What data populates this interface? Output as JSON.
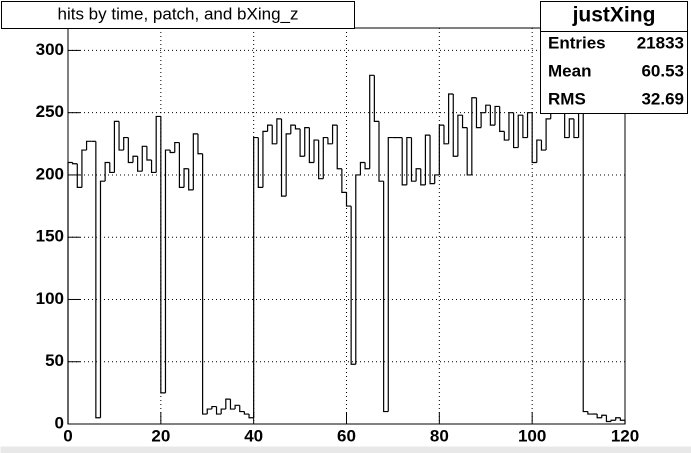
{
  "chart_data": {
    "type": "histogram",
    "title": "hits by time, patch, and bXing_z",
    "bins": [
      0,
      1,
      2,
      3,
      4,
      5,
      6,
      7,
      8,
      9,
      10,
      11,
      12,
      13,
      14,
      15,
      16,
      17,
      18,
      19,
      20,
      21,
      22,
      23,
      24,
      25,
      26,
      27,
      28,
      29,
      30,
      31,
      32,
      33,
      34,
      35,
      36,
      37,
      38,
      39,
      40,
      41,
      42,
      43,
      44,
      45,
      46,
      47,
      48,
      49,
      50,
      51,
      52,
      53,
      54,
      55,
      56,
      57,
      58,
      59,
      60,
      61,
      62,
      63,
      64,
      65,
      66,
      67,
      68,
      69,
      70,
      71,
      72,
      73,
      74,
      75,
      76,
      77,
      78,
      79,
      80,
      81,
      82,
      83,
      84,
      85,
      86,
      87,
      88,
      89,
      90,
      91,
      92,
      93,
      94,
      95,
      96,
      97,
      98,
      99,
      100,
      101,
      102,
      103,
      104,
      105,
      106,
      107,
      108,
      109,
      110,
      111,
      112,
      113,
      114,
      115,
      116,
      117,
      118,
      119,
      120
    ],
    "values": [
      210,
      209,
      190,
      220,
      227,
      227,
      5,
      195,
      210,
      202,
      243,
      220,
      230,
      210,
      215,
      203,
      223,
      212,
      202,
      247,
      25,
      220,
      218,
      226,
      190,
      205,
      188,
      233,
      217,
      8,
      12,
      14,
      8,
      12,
      20,
      12,
      15,
      10,
      8,
      5,
      230,
      190,
      235,
      240,
      225,
      245,
      183,
      233,
      240,
      237,
      215,
      238,
      210,
      228,
      197,
      230,
      225,
      240,
      205,
      186,
      175,
      48,
      200,
      210,
      205,
      280,
      243,
      195,
      10,
      230,
      230,
      230,
      192,
      230,
      195,
      205,
      192,
      232,
      193,
      200,
      240,
      225,
      265,
      215,
      248,
      238,
      200,
      262,
      238,
      250,
      256,
      240,
      255,
      235,
      228,
      250,
      222,
      248,
      230,
      250,
      210,
      228,
      220,
      245,
      255,
      250,
      260,
      230,
      245,
      230,
      250,
      10,
      8,
      8,
      5,
      7,
      2,
      3,
      5,
      3
    ],
    "color": "#000000",
    "xlim": [
      0,
      120
    ],
    "ylim": [
      0,
      318
    ],
    "xticks": [
      0,
      20,
      40,
      60,
      80,
      100,
      120
    ],
    "yticks": [
      0,
      50,
      100,
      150,
      200,
      250,
      300
    ],
    "grid": true,
    "stats": {
      "name": "justXing",
      "rows": [
        [
          "Entries",
          "21833"
        ],
        [
          "Mean",
          "60.53"
        ],
        [
          "RMS",
          "32.69"
        ]
      ]
    }
  }
}
